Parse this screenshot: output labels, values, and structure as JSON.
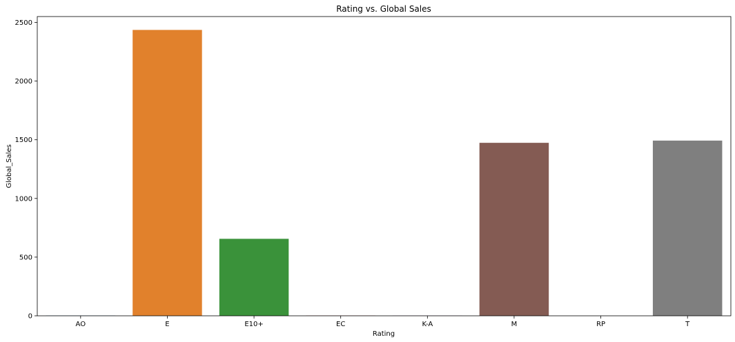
{
  "chart_data": {
    "type": "bar",
    "title": "Rating vs. Global Sales",
    "xlabel": "Rating",
    "ylabel": "Global_Sales",
    "categories": [
      "AO",
      "E",
      "E10+",
      "EC",
      "K-A",
      "M",
      "RP",
      "T"
    ],
    "values": [
      1.96,
      2436,
      656,
      1.75,
      1.44,
      1474,
      0.04,
      1493
    ],
    "colors": [
      "#1f77b4",
      "#e1812c",
      "#3a923a",
      "#c03d3e",
      "#9372b2",
      "#845b53",
      "#d684bd",
      "#7f7f7f"
    ],
    "ylim": [
      0,
      2550
    ],
    "yticks": [
      0,
      500,
      1000,
      1500,
      2000,
      2500
    ],
    "grid": false,
    "legend": "none"
  }
}
